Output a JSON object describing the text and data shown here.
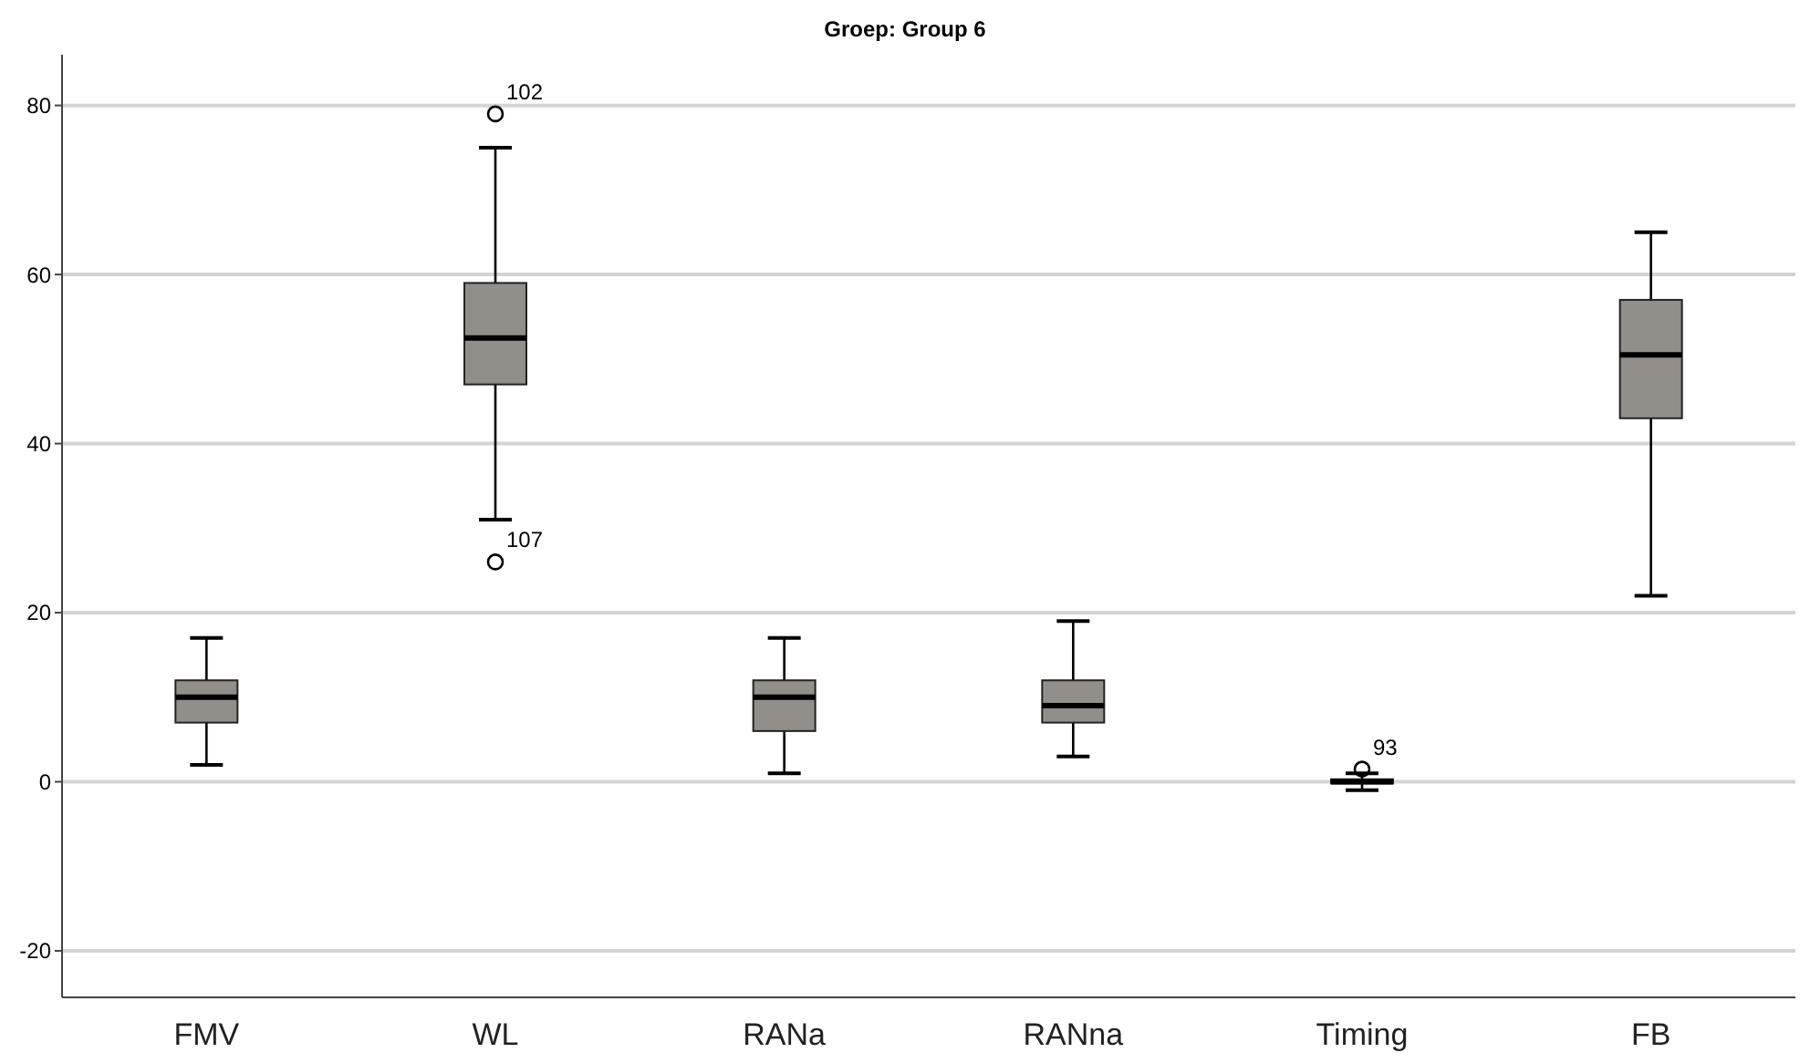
{
  "chart_data": {
    "type": "box",
    "title": "Groep: Group 6",
    "categories": [
      "FMV",
      "WL",
      "RANa",
      "RANna",
      "Timing",
      "FB"
    ],
    "boxes": [
      {
        "low": 2,
        "q1": 7,
        "median": 10,
        "q3": 12,
        "high": 17
      },
      {
        "low": 31,
        "q1": 47,
        "median": 52.5,
        "q3": 59,
        "high": 75,
        "outliers": [
          79,
          26
        ]
      },
      {
        "low": 1,
        "q1": 6,
        "median": 10,
        "q3": 12,
        "high": 17
      },
      {
        "low": 3,
        "q1": 7,
        "median": 9,
        "q3": 12,
        "high": 19
      },
      {
        "low": -1,
        "q1": -0.2,
        "median": 0,
        "q3": 0.3,
        "high": 1,
        "outliers": [
          1.5
        ]
      },
      {
        "low": 22,
        "q1": 43,
        "median": 50.5,
        "q3": 57,
        "high": 65
      }
    ],
    "color": "#928f8b",
    "ylim": [
      -25.5,
      86
    ],
    "yticks": [
      -20,
      0,
      20,
      40,
      60,
      80
    ],
    "grid": "y",
    "annotations": [
      "102",
      "107",
      "93"
    ]
  }
}
